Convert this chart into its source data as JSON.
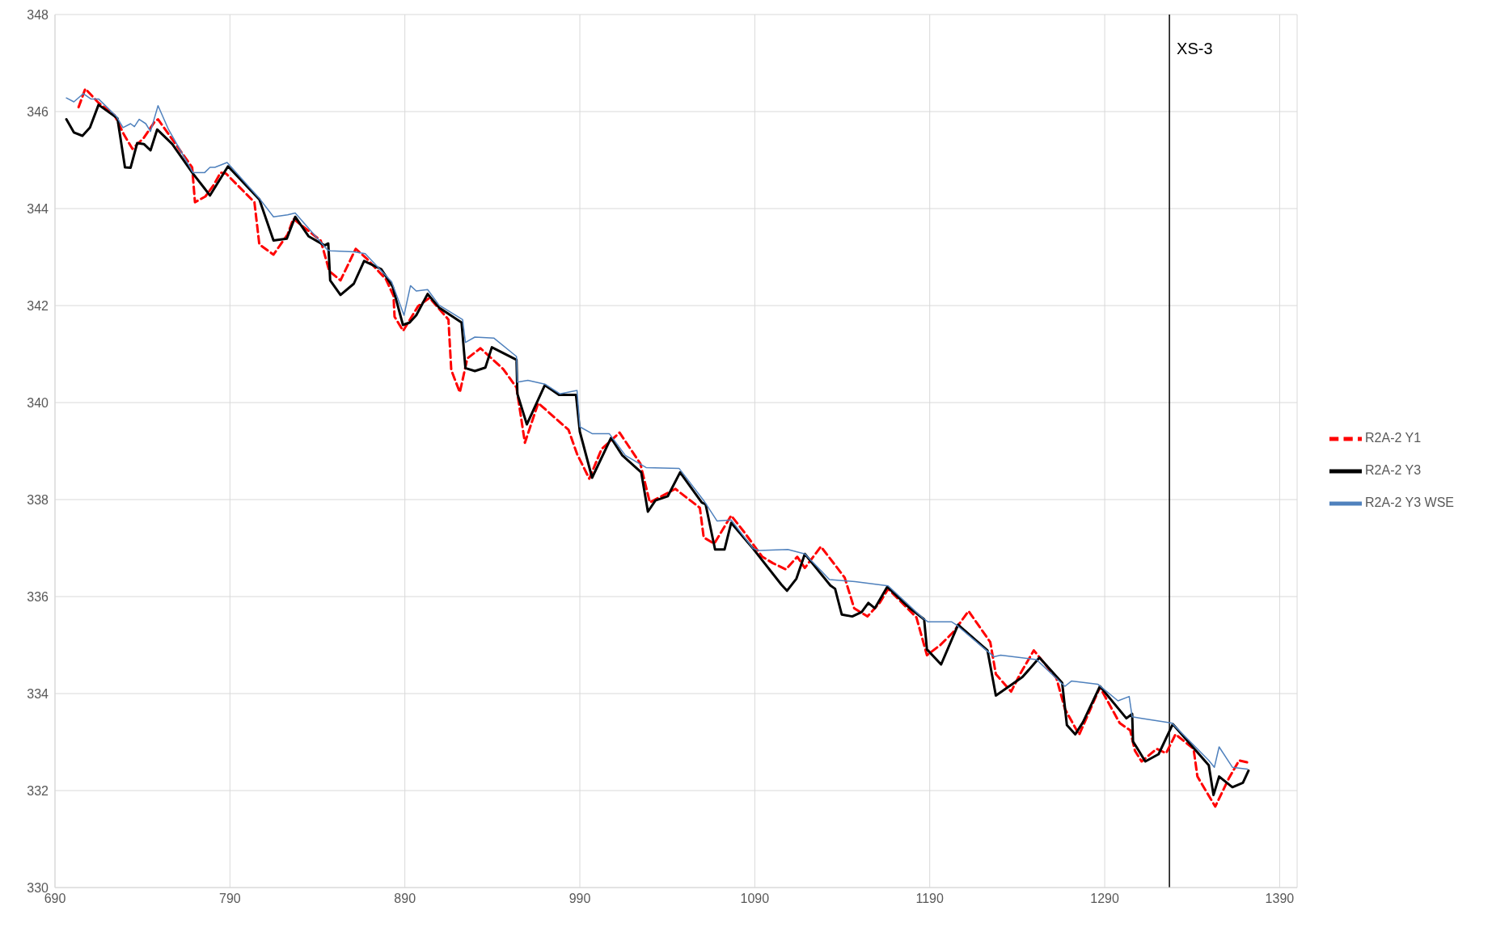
{
  "chart_data": {
    "type": "line",
    "xlim": [
      690,
      1400
    ],
    "xticks": [
      690,
      790,
      890,
      990,
      1090,
      1190,
      1290,
      1390
    ],
    "ylim": [
      330,
      348
    ],
    "yticks": [
      330,
      332,
      334,
      336,
      338,
      340,
      342,
      344,
      346,
      348
    ],
    "grid": true,
    "legend": "right",
    "marker": "none",
    "ref_lines": [
      {
        "axis": "x",
        "value": 1327,
        "label": "XS-3",
        "color": "#000000"
      }
    ],
    "series": [
      {
        "name": "R2A-2 Y1",
        "color": "#ff0000",
        "line_style": "dashed",
        "x": [
          703.5,
          707.3,
          714.9,
          724.1,
          729.5,
          734.3,
          740.8,
          746.8,
          748.9,
          768.4,
          770,
          776,
          780.8,
          784.6,
          787.8,
          804,
          806.8,
          814.9,
          823,
          826.2,
          841.9,
          846.8,
          853.2,
          861.9,
          868.4,
          879.2,
          883.5,
          884.1,
          889,
          897.6,
          904.1,
          914.9,
          916.5,
          921.4,
          925.7,
          933.2,
          946.2,
          953.8,
          958.6,
          966.2,
          983.5,
          988.4,
          995.4,
          1002.4,
          1012.7,
          1024.6,
          1030,
          1044.6,
          1058.6,
          1060.8,
          1066.8,
          1076.5,
          1083.5,
          1094.3,
          1100.3,
          1107.8,
          1114.3,
          1118.6,
          1127.8,
          1141.4,
          1146.8,
          1154.4,
          1161.4,
          1166.2,
          1182.4,
          1188.4,
          1196,
          1203.5,
          1212.2,
          1224.6,
          1227.8,
          1236.5,
          1241.9,
          1249.5,
          1262.4,
          1267.3,
          1275.4,
          1287.3,
          1298.6,
          1304.6,
          1307.3,
          1311.1,
          1319.7,
          1325.1,
          1330.5,
          1340.8,
          1343,
          1353.2,
          1360.8,
          1366.8,
          1371.6
        ],
        "values": [
          346.09,
          346.47,
          346.18,
          345.92,
          345.52,
          345.23,
          345.46,
          345.78,
          345.84,
          344.85,
          344.13,
          344.25,
          344.49,
          344.74,
          344.72,
          344.13,
          343.26,
          343.05,
          343.47,
          343.79,
          343.34,
          342.71,
          342.52,
          343.17,
          342.96,
          342.54,
          342.2,
          341.77,
          341.48,
          341.99,
          342.16,
          341.71,
          340.67,
          340.21,
          340.91,
          341.12,
          340.69,
          340.31,
          339.17,
          339.99,
          339.44,
          338.94,
          338.43,
          339.04,
          339.38,
          338.74,
          337.94,
          338.22,
          337.83,
          337.22,
          337.09,
          337.67,
          337.35,
          336.82,
          336.69,
          336.56,
          336.82,
          336.59,
          337.03,
          336.39,
          335.76,
          335.59,
          335.87,
          336.16,
          335.57,
          334.79,
          335.0,
          335.27,
          335.7,
          335.06,
          334.4,
          334.04,
          334.42,
          334.89,
          334.32,
          333.68,
          333.15,
          334.13,
          333.39,
          333.24,
          332.82,
          332.6,
          332.86,
          332.77,
          333.16,
          332.86,
          332.29,
          331.67,
          332.24,
          332.62,
          332.58
        ]
      },
      {
        "name": "R2A-2 Y3",
        "color": "#000000",
        "line_style": "solid",
        "x": [
          696.5,
          700.8,
          705.7,
          710,
          714.9,
          725.7,
          730,
          733.2,
          737,
          740.8,
          744.6,
          748.4,
          757,
          768.9,
          778.6,
          788.9,
          806.8,
          814.9,
          822.5,
          827.3,
          834.9,
          844.1,
          846.2,
          847.3,
          853.2,
          860.8,
          866.7,
          876.5,
          883,
          888.9,
          892.7,
          896.5,
          903,
          909.5,
          922.4,
          924.6,
          930,
          936,
          939.7,
          953.8,
          954.3,
          959.7,
          970,
          978.1,
          987.8,
          990,
          997,
          1007.8,
          1014.3,
          1025.1,
          1028.9,
          1033.2,
          1040.3,
          1047.3,
          1059.7,
          1061.9,
          1067.3,
          1072.7,
          1076.5,
          1089,
          1105.1,
          1108.4,
          1113.8,
          1118.6,
          1133.2,
          1135.9,
          1139.7,
          1145.7,
          1151.1,
          1154.9,
          1158.6,
          1165.7,
          1178.6,
          1186.8,
          1188.4,
          1196.5,
          1206.2,
          1223,
          1227.8,
          1243,
          1252.7,
          1265.7,
          1268.4,
          1273.2,
          1277.6,
          1287.3,
          1302.4,
          1305.7,
          1306.2,
          1309.5,
          1313.2,
          1320.8,
          1328.9,
          1349.5,
          1352.2,
          1355.4,
          1363,
          1369,
          1372.2
        ],
        "values": [
          345.84,
          345.57,
          345.5,
          345.67,
          346.14,
          345.86,
          344.85,
          344.84,
          345.35,
          345.33,
          345.2,
          345.63,
          345.33,
          344.72,
          344.27,
          344.87,
          344.19,
          343.34,
          343.38,
          343.83,
          343.43,
          343.24,
          343.28,
          342.52,
          342.22,
          342.45,
          342.92,
          342.75,
          342.39,
          341.6,
          341.65,
          341.8,
          342.24,
          341.96,
          341.65,
          340.71,
          340.65,
          340.72,
          341.14,
          340.88,
          340.18,
          339.55,
          340.36,
          340.16,
          340.16,
          339.4,
          338.45,
          339.27,
          338.91,
          338.56,
          337.75,
          337.98,
          338.07,
          338.56,
          337.94,
          337.9,
          336.97,
          336.97,
          337.52,
          336.99,
          336.25,
          336.12,
          336.37,
          336.88,
          336.23,
          336.16,
          335.63,
          335.59,
          335.68,
          335.87,
          335.76,
          336.2,
          335.76,
          335.53,
          334.91,
          334.6,
          335.42,
          334.89,
          333.96,
          334.34,
          334.74,
          334.22,
          333.35,
          333.16,
          333.41,
          334.15,
          333.49,
          333.58,
          333.01,
          332.82,
          332.6,
          332.75,
          333.37,
          332.52,
          331.91,
          332.29,
          332.07,
          332.16,
          332.41
        ]
      },
      {
        "name": "R2A-2 Y3 WSE",
        "color": "#4f81bd",
        "line_style": "solid",
        "x": [
          696.5,
          700.8,
          706.2,
          710.5,
          714.9,
          725.1,
          728.9,
          733.2,
          735.4,
          738.1,
          741.9,
          744.6,
          748.9,
          754.9,
          768.9,
          775.5,
          778.6,
          781.4,
          788.4,
          806.8,
          814.9,
          823,
          827.3,
          845.7,
          847.3,
          860.8,
          867.3,
          882.4,
          889.5,
          893.2,
          896.5,
          903,
          909.5,
          923,
          924.6,
          930,
          940.8,
          953.8,
          954.3,
          960.3,
          970,
          978.6,
          988.4,
          990,
          997,
          1006.8,
          1016,
          1027.9,
          1046.8,
          1060.8,
          1068.4,
          1076.5,
          1089,
          1092.7,
          1108.9,
          1118.6,
          1132.7,
          1147.3,
          1166.2,
          1186.2,
          1188.9,
          1202.4,
          1205.1,
          1226.7,
          1230.5,
          1251,
          1265.1,
          1267.3,
          1271.1,
          1286.2,
          1297.6,
          1304,
          1305.7,
          1310.5,
          1328.4,
          1349.5,
          1352.7,
          1355.4,
          1363,
          1371.6
        ],
        "values": [
          346.28,
          346.2,
          346.37,
          346.26,
          346.26,
          345.9,
          345.67,
          345.75,
          345.69,
          345.84,
          345.75,
          345.59,
          346.12,
          345.63,
          344.74,
          344.74,
          344.85,
          344.85,
          344.95,
          344.21,
          343.83,
          343.87,
          343.91,
          343.15,
          343.13,
          343.11,
          343.07,
          342.49,
          341.8,
          342.41,
          342.3,
          342.33,
          342.01,
          341.71,
          341.24,
          341.35,
          341.33,
          340.95,
          340.42,
          340.46,
          340.38,
          340.18,
          340.25,
          339.5,
          339.36,
          339.36,
          338.91,
          338.66,
          338.64,
          337.98,
          337.56,
          337.58,
          336.99,
          336.95,
          336.97,
          336.88,
          336.35,
          336.31,
          336.22,
          335.55,
          335.48,
          335.48,
          335.42,
          334.76,
          334.79,
          334.7,
          334.22,
          334.15,
          334.26,
          334.19,
          333.85,
          333.94,
          333.52,
          333.49,
          333.39,
          332.62,
          332.48,
          332.9,
          332.48,
          332.44
        ]
      }
    ]
  }
}
